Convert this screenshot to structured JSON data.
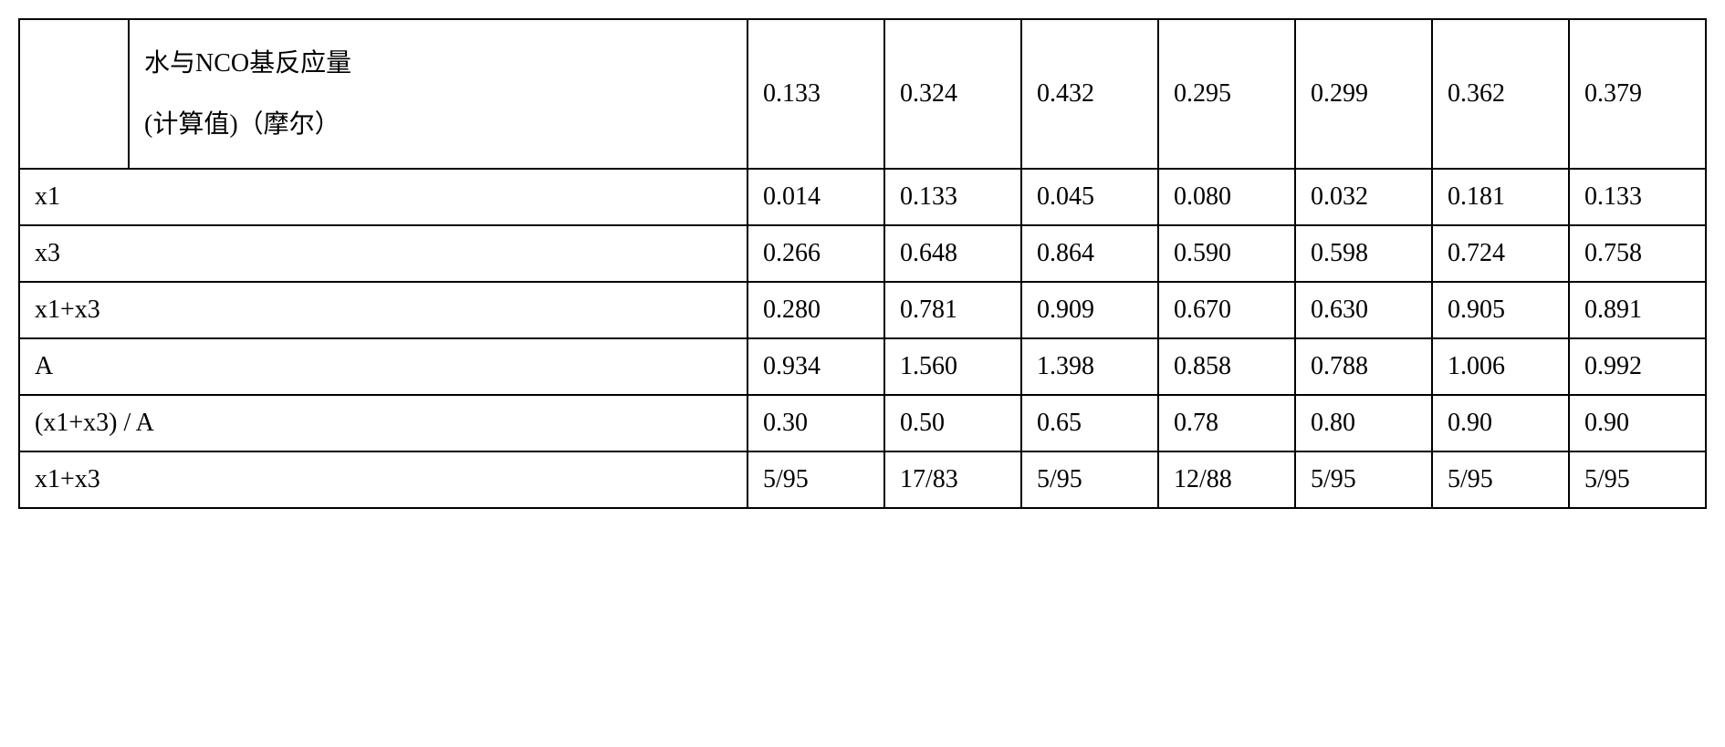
{
  "table": {
    "columns_count": 9,
    "header_row": {
      "col0": "",
      "col1_line1": "水与NCO基反应量",
      "col1_line2": "(计算值)（摩尔）",
      "values": [
        "0.133",
        "0.324",
        "0.432",
        "0.295",
        "0.299",
        "0.362",
        "0.379"
      ]
    },
    "rows": [
      {
        "label": "x1",
        "values": [
          "0.014",
          "0.133",
          "0.045",
          "0.080",
          "0.032",
          "0.181",
          "0.133"
        ]
      },
      {
        "label": "x3",
        "values": [
          "0.266",
          "0.648",
          "0.864",
          "0.590",
          "0.598",
          "0.724",
          "0.758"
        ]
      },
      {
        "label": "x1+x3",
        "values": [
          "0.280",
          "0.781",
          "0.909",
          "0.670",
          "0.630",
          "0.905",
          "0.891"
        ]
      },
      {
        "label": "A",
        "values": [
          "0.934",
          "1.560",
          "1.398",
          "0.858",
          "0.788",
          "1.006",
          "0.992"
        ]
      },
      {
        "label": "(x1+x3) / A",
        "values": [
          "0.30",
          "0.50",
          "0.65",
          "0.78",
          "0.80",
          "0.90",
          "0.90"
        ]
      },
      {
        "label": "x1+x3",
        "values": [
          "5/95",
          "17/83",
          "5/95",
          "12/88",
          "5/95",
          "5/95",
          "5/95"
        ]
      }
    ],
    "border_color": "#000000",
    "background_color": "#ffffff",
    "font_size": 28,
    "cell_padding": 14
  }
}
